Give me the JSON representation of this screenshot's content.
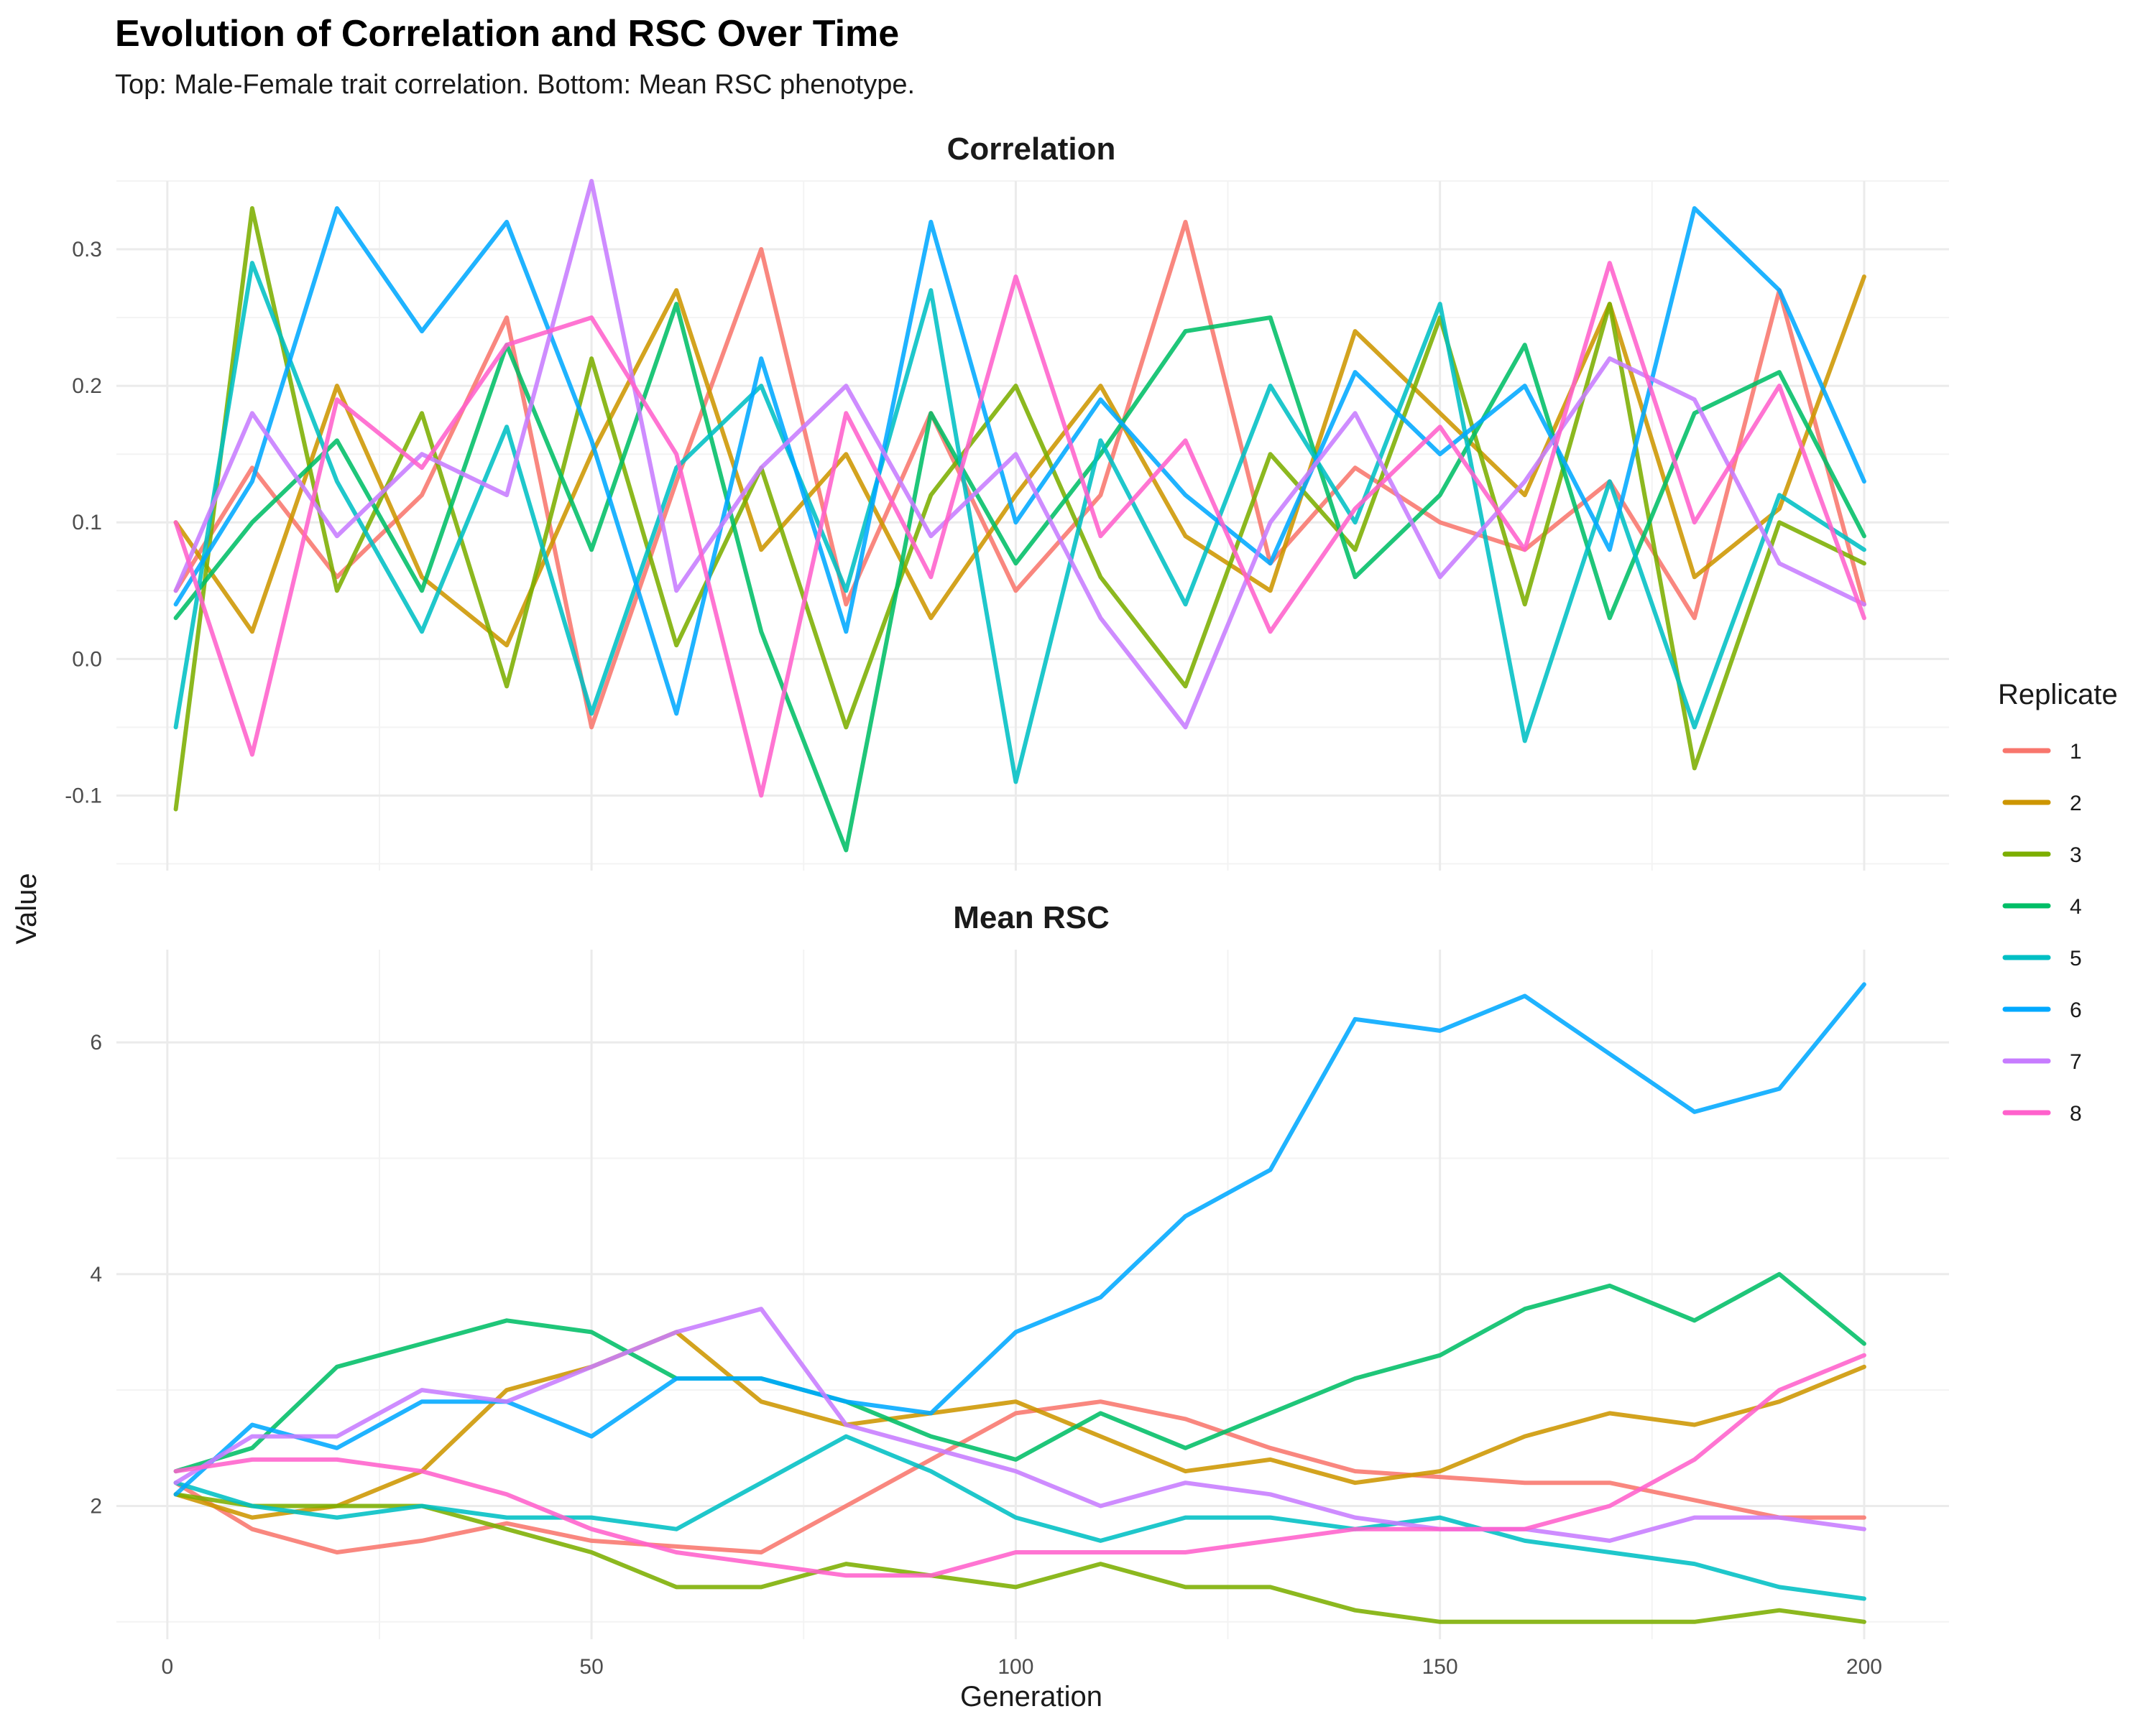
{
  "chart_data": {
    "type": "line",
    "title": "Evolution of Correlation and RSC Over Time",
    "subtitle": "Top: Male-Female trait correlation. Bottom: Mean RSC phenotype.",
    "xlabel": "Generation",
    "ylabel": "Value",
    "grid": true,
    "legend": {
      "title": "Replicate",
      "placement": "right",
      "entries": [
        "1",
        "2",
        "3",
        "4",
        "5",
        "6",
        "7",
        "8"
      ]
    },
    "colors": [
      "#F8766D",
      "#CD9600",
      "#7CAE00",
      "#00BE67",
      "#00BFC4",
      "#00A9FF",
      "#C77CFF",
      "#FF61CC"
    ],
    "x_ticks": [
      0,
      50,
      100,
      150,
      200
    ],
    "panels": [
      {
        "title": "Correlation",
        "xlim": [
          1,
          200
        ],
        "ylim": [
          -0.155,
          0.35
        ],
        "y_ticks": [
          -0.1,
          0.0,
          0.1,
          0.2,
          0.3
        ],
        "y_tick_labels": [
          "-0.1",
          "0.0",
          "0.1",
          "0.2",
          "0.3"
        ],
        "x": [
          1,
          10,
          20,
          30,
          40,
          50,
          60,
          70,
          80,
          90,
          100,
          110,
          120,
          130,
          140,
          150,
          160,
          170,
          180,
          190,
          200
        ],
        "series": [
          {
            "name": "1",
            "values": [
              0.05,
              0.14,
              0.06,
              0.12,
              0.25,
              -0.05,
              0.13,
              0.3,
              0.04,
              0.18,
              0.05,
              0.12,
              0.32,
              0.07,
              0.14,
              0.1,
              0.08,
              0.13,
              0.03,
              0.27,
              0.04
            ]
          },
          {
            "name": "2",
            "values": [
              0.1,
              0.02,
              0.2,
              0.06,
              0.01,
              0.15,
              0.27,
              0.08,
              0.15,
              0.03,
              0.12,
              0.2,
              0.09,
              0.05,
              0.24,
              0.18,
              0.12,
              0.26,
              0.06,
              0.11,
              0.28
            ]
          },
          {
            "name": "3",
            "values": [
              -0.11,
              0.33,
              0.05,
              0.18,
              -0.02,
              0.22,
              0.01,
              0.14,
              -0.05,
              0.12,
              0.2,
              0.06,
              -0.02,
              0.15,
              0.08,
              0.25,
              0.04,
              0.26,
              -0.08,
              0.1,
              0.07
            ]
          },
          {
            "name": "4",
            "values": [
              0.03,
              0.1,
              0.16,
              0.05,
              0.23,
              0.08,
              0.26,
              0.02,
              -0.14,
              0.18,
              0.07,
              0.15,
              0.24,
              0.25,
              0.06,
              0.12,
              0.23,
              0.03,
              0.18,
              0.21,
              0.09
            ]
          },
          {
            "name": "5",
            "values": [
              -0.05,
              0.29,
              0.13,
              0.02,
              0.17,
              -0.04,
              0.14,
              0.2,
              0.05,
              0.27,
              -0.09,
              0.16,
              0.04,
              0.2,
              0.1,
              0.26,
              -0.06,
              0.13,
              -0.05,
              0.12,
              0.08
            ]
          },
          {
            "name": "6",
            "values": [
              0.04,
              0.13,
              0.33,
              0.24,
              0.32,
              0.16,
              -0.04,
              0.22,
              0.02,
              0.32,
              0.1,
              0.19,
              0.12,
              0.07,
              0.21,
              0.15,
              0.2,
              0.08,
              0.33,
              0.27,
              0.13
            ]
          },
          {
            "name": "7",
            "values": [
              0.05,
              0.18,
              0.09,
              0.15,
              0.12,
              0.35,
              0.05,
              0.14,
              0.2,
              0.09,
              0.15,
              0.03,
              -0.05,
              0.1,
              0.18,
              0.06,
              0.13,
              0.22,
              0.19,
              0.07,
              0.04
            ]
          },
          {
            "name": "8",
            "values": [
              0.1,
              -0.07,
              0.19,
              0.14,
              0.23,
              0.25,
              0.15,
              -0.1,
              0.18,
              0.06,
              0.28,
              0.09,
              0.16,
              0.02,
              0.11,
              0.17,
              0.08,
              0.29,
              0.1,
              0.2,
              0.03
            ]
          }
        ]
      },
      {
        "title": "Mean RSC",
        "xlim": [
          1,
          200
        ],
        "ylim": [
          0.85,
          6.8
        ],
        "y_ticks": [
          2,
          4,
          6
        ],
        "y_tick_labels": [
          "2",
          "4",
          "6"
        ],
        "x": [
          1,
          10,
          20,
          30,
          40,
          50,
          60,
          70,
          80,
          90,
          100,
          110,
          120,
          130,
          140,
          150,
          160,
          170,
          180,
          190,
          200
        ],
        "series": [
          {
            "name": "1",
            "values": [
              2.2,
              1.8,
              1.6,
              1.7,
              1.85,
              1.7,
              1.65,
              1.6,
              2.0,
              2.4,
              2.8,
              2.9,
              2.75,
              2.5,
              2.3,
              2.25,
              2.2,
              2.2,
              2.05,
              1.9,
              1.9
            ]
          },
          {
            "name": "2",
            "values": [
              2.1,
              1.9,
              2.0,
              2.3,
              3.0,
              3.2,
              3.5,
              2.9,
              2.7,
              2.8,
              2.9,
              2.6,
              2.3,
              2.4,
              2.2,
              2.3,
              2.6,
              2.8,
              2.7,
              2.9,
              3.2
            ]
          },
          {
            "name": "3",
            "values": [
              2.1,
              2.0,
              2.0,
              2.0,
              1.8,
              1.6,
              1.3,
              1.3,
              1.5,
              1.4,
              1.3,
              1.5,
              1.3,
              1.3,
              1.1,
              1.0,
              1.0,
              1.0,
              1.0,
              1.1,
              1.0
            ]
          },
          {
            "name": "4",
            "values": [
              2.3,
              2.5,
              3.2,
              3.4,
              3.6,
              3.5,
              3.1,
              3.1,
              2.9,
              2.6,
              2.4,
              2.8,
              2.5,
              2.8,
              3.1,
              3.3,
              3.7,
              3.9,
              3.6,
              4.0,
              3.4
            ]
          },
          {
            "name": "5",
            "values": [
              2.2,
              2.0,
              1.9,
              2.0,
              1.9,
              1.9,
              1.8,
              2.2,
              2.6,
              2.3,
              1.9,
              1.7,
              1.9,
              1.9,
              1.8,
              1.9,
              1.7,
              1.6,
              1.5,
              1.3,
              1.2
            ]
          },
          {
            "name": "6",
            "values": [
              2.1,
              2.7,
              2.5,
              2.9,
              2.9,
              2.6,
              3.1,
              3.1,
              2.9,
              2.8,
              3.5,
              3.8,
              4.5,
              4.9,
              6.2,
              6.1,
              6.4,
              5.9,
              5.4,
              5.6,
              6.5
            ]
          },
          {
            "name": "7",
            "values": [
              2.2,
              2.6,
              2.6,
              3.0,
              2.9,
              3.2,
              3.5,
              3.7,
              2.7,
              2.5,
              2.3,
              2.0,
              2.2,
              2.1,
              1.9,
              1.8,
              1.8,
              1.7,
              1.9,
              1.9,
              1.8
            ]
          },
          {
            "name": "8",
            "values": [
              2.3,
              2.4,
              2.4,
              2.3,
              2.1,
              1.8,
              1.6,
              1.5,
              1.4,
              1.4,
              1.6,
              1.6,
              1.6,
              1.7,
              1.8,
              1.8,
              1.8,
              2.0,
              2.4,
              3.0,
              3.3
            ]
          }
        ]
      }
    ]
  }
}
